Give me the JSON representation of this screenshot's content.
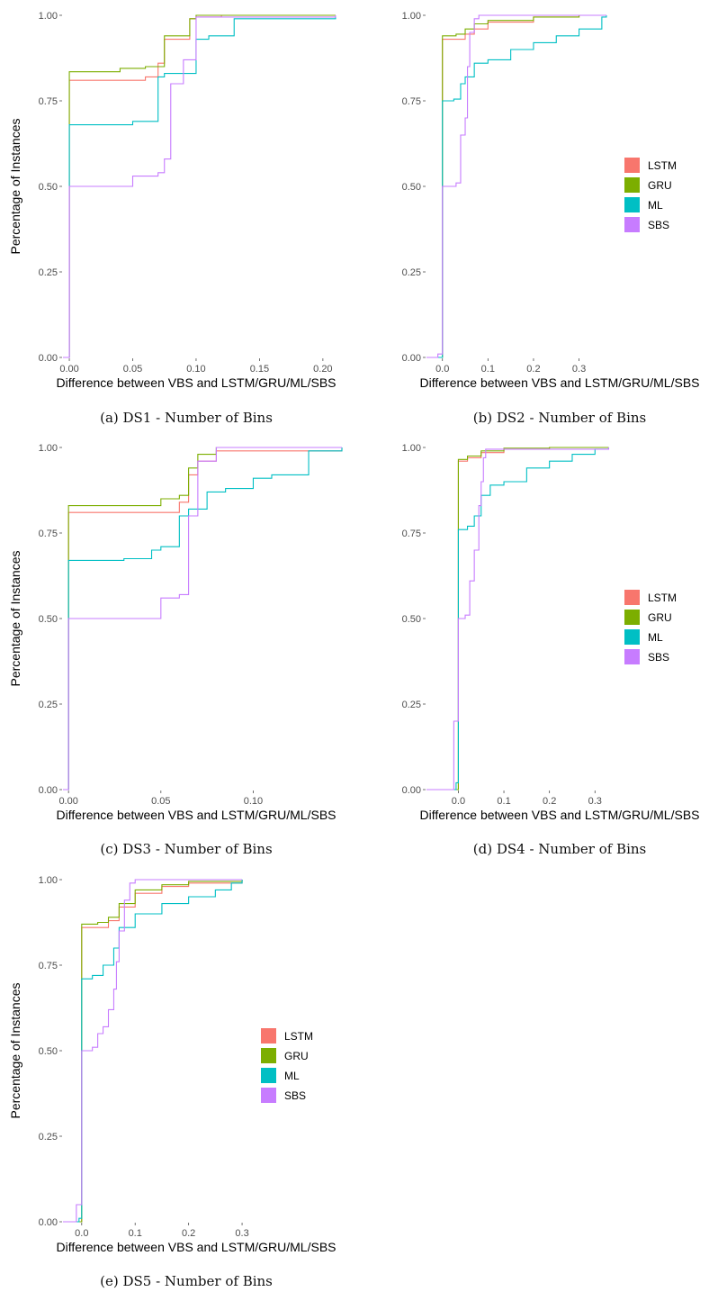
{
  "series_colors": {
    "LSTM": "#F8766D",
    "GRU": "#7CAE00",
    "ML": "#00BFC4",
    "SBS": "#C77CFF"
  },
  "chart_data": [
    {
      "type": "line",
      "caption": "(a) DS1 - Number of Bins",
      "xlabel": "Difference between VBS and LSTM/GRU/ML/SBS",
      "ylabel": "Percentage of Instances",
      "xlim": [
        -0.005,
        0.215
      ],
      "ylim": [
        0,
        1
      ],
      "xticks": [
        0,
        0.05,
        0.1,
        0.15,
        0.2
      ],
      "xtick_labels": [
        "0.00",
        "0.05",
        "0.10",
        "0.15",
        "0.20"
      ],
      "yticks": [
        0,
        0.25,
        0.5,
        0.75,
        1
      ],
      "ytick_labels": [
        "0.00",
        "0.25",
        "0.50",
        "0.75",
        "1.00"
      ],
      "legend": "none",
      "series": [
        {
          "name": "LSTM",
          "x": [
            -0.005,
            0,
            0.04,
            0.06,
            0.07,
            0.075,
            0.095,
            0.1,
            0.12,
            0.21
          ],
          "y": [
            0,
            0.81,
            0.81,
            0.82,
            0.86,
            0.93,
            0.99,
            0.995,
            1,
            1
          ]
        },
        {
          "name": "GRU",
          "x": [
            -0.005,
            0,
            0.04,
            0.06,
            0.075,
            0.095,
            0.1,
            0.21
          ],
          "y": [
            0,
            0.835,
            0.845,
            0.85,
            0.94,
            0.99,
            1,
            1
          ]
        },
        {
          "name": "ML",
          "x": [
            -0.005,
            0,
            0.03,
            0.05,
            0.07,
            0.075,
            0.085,
            0.1,
            0.11,
            0.13,
            0.21
          ],
          "y": [
            0,
            0.68,
            0.68,
            0.69,
            0.82,
            0.83,
            0.83,
            0.93,
            0.94,
            0.99,
            1
          ]
        },
        {
          "name": "SBS",
          "x": [
            -0.005,
            0,
            0.04,
            0.05,
            0.07,
            0.075,
            0.08,
            0.09,
            0.095,
            0.1,
            0.21
          ],
          "y": [
            0,
            0.5,
            0.5,
            0.53,
            0.54,
            0.58,
            0.8,
            0.87,
            0.87,
            0.995,
            1
          ]
        }
      ]
    },
    {
      "type": "line",
      "caption": "(b) DS2 - Number of Bins",
      "xlabel": "Difference between VBS and LSTM/GRU/ML/SBS",
      "ylabel": "",
      "xlim": [
        -0.035,
        0.37
      ],
      "ylim": [
        0,
        1
      ],
      "xticks": [
        0,
        0.1,
        0.2,
        0.3
      ],
      "xtick_labels": [
        "0.0",
        "0.1",
        "0.2",
        "0.3"
      ],
      "yticks": [
        0,
        0.25,
        0.5,
        0.75,
        1
      ],
      "ytick_labels": [
        "0.00",
        "0.25",
        "0.50",
        "0.75",
        "1.00"
      ],
      "legend": "right",
      "series": [
        {
          "name": "LSTM",
          "x": [
            -0.035,
            -0.005,
            0,
            0.03,
            0.05,
            0.07,
            0.1,
            0.2,
            0.3,
            0.36
          ],
          "y": [
            0,
            0,
            0.93,
            0.93,
            0.945,
            0.96,
            0.98,
            0.995,
            1,
            1
          ]
        },
        {
          "name": "GRU",
          "x": [
            -0.035,
            -0.005,
            0,
            0.03,
            0.05,
            0.07,
            0.1,
            0.2,
            0.3,
            0.36
          ],
          "y": [
            0,
            0,
            0.94,
            0.945,
            0.96,
            0.975,
            0.985,
            0.995,
            1,
            1
          ]
        },
        {
          "name": "ML",
          "x": [
            -0.035,
            -0.005,
            0,
            0.025,
            0.04,
            0.05,
            0.07,
            0.1,
            0.15,
            0.2,
            0.25,
            0.3,
            0.35,
            0.36
          ],
          "y": [
            0,
            0,
            0.75,
            0.755,
            0.8,
            0.82,
            0.86,
            0.87,
            0.9,
            0.92,
            0.94,
            0.96,
            0.995,
            1
          ]
        },
        {
          "name": "SBS",
          "x": [
            -0.035,
            -0.01,
            -0.005,
            0,
            0.02,
            0.03,
            0.04,
            0.05,
            0.055,
            0.06,
            0.07,
            0.08,
            0.1,
            0.36
          ],
          "y": [
            0,
            0.01,
            0.01,
            0.5,
            0.5,
            0.51,
            0.65,
            0.7,
            0.85,
            0.95,
            0.99,
            1,
            1,
            1
          ]
        }
      ]
    },
    {
      "type": "line",
      "caption": "(c) DS3 - Number of Bins",
      "xlabel": "Difference between VBS and LSTM/GRU/ML/SBS",
      "ylabel": "Percentage of Instances",
      "xlim": [
        -0.003,
        0.148
      ],
      "ylim": [
        0,
        1
      ],
      "xticks": [
        0,
        0.05,
        0.1
      ],
      "xtick_labels": [
        "0.00",
        "0.05",
        "0.10"
      ],
      "yticks": [
        0,
        0.25,
        0.5,
        0.75,
        1
      ],
      "ytick_labels": [
        "0.00",
        "0.25",
        "0.50",
        "0.75",
        "1.00"
      ],
      "legend": "none",
      "series": [
        {
          "name": "LSTM",
          "x": [
            -0.003,
            0,
            0.045,
            0.06,
            0.065,
            0.07,
            0.08,
            0.148
          ],
          "y": [
            0,
            0.81,
            0.81,
            0.84,
            0.92,
            0.96,
            0.99,
            1
          ]
        },
        {
          "name": "GRU",
          "x": [
            -0.003,
            0,
            0.045,
            0.05,
            0.06,
            0.065,
            0.07,
            0.08,
            0.148
          ],
          "y": [
            0,
            0.83,
            0.83,
            0.85,
            0.86,
            0.94,
            0.98,
            1,
            1
          ]
        },
        {
          "name": "ML",
          "x": [
            -0.003,
            0,
            0.03,
            0.045,
            0.05,
            0.06,
            0.065,
            0.075,
            0.085,
            0.1,
            0.11,
            0.13,
            0.148
          ],
          "y": [
            0,
            0.67,
            0.675,
            0.7,
            0.71,
            0.8,
            0.82,
            0.87,
            0.88,
            0.91,
            0.92,
            0.99,
            1
          ]
        },
        {
          "name": "SBS",
          "x": [
            -0.003,
            0,
            0.045,
            0.05,
            0.06,
            0.065,
            0.07,
            0.08,
            0.148
          ],
          "y": [
            0,
            0.5,
            0.5,
            0.56,
            0.57,
            0.8,
            0.96,
            1,
            1
          ]
        }
      ]
    },
    {
      "type": "line",
      "caption": "(d) DS4 - Number of Bins",
      "xlabel": "Difference between VBS and LSTM/GRU/ML/SBS",
      "ylabel": "",
      "xlim": [
        -0.07,
        0.335
      ],
      "ylim": [
        0,
        1
      ],
      "xticks": [
        0,
        0.1,
        0.2,
        0.3
      ],
      "xtick_labels": [
        "0.0",
        "0.1",
        "0.2",
        "0.3"
      ],
      "yticks": [
        0,
        0.25,
        0.5,
        0.75,
        1
      ],
      "ytick_labels": [
        "0.00",
        "0.25",
        "0.50",
        "0.75",
        "1.00"
      ],
      "legend": "right",
      "series": [
        {
          "name": "LSTM",
          "x": [
            -0.07,
            -0.005,
            0,
            0.02,
            0.05,
            0.1,
            0.2,
            0.33
          ],
          "y": [
            0,
            0,
            0.96,
            0.97,
            0.985,
            0.995,
            1,
            1
          ]
        },
        {
          "name": "GRU",
          "x": [
            -0.07,
            -0.005,
            0,
            0.02,
            0.05,
            0.1,
            0.2,
            0.33
          ],
          "y": [
            0,
            0,
            0.965,
            0.975,
            0.99,
            0.998,
            1,
            1
          ]
        },
        {
          "name": "ML",
          "x": [
            -0.07,
            -0.01,
            -0.005,
            0,
            0.02,
            0.035,
            0.05,
            0.07,
            0.1,
            0.15,
            0.2,
            0.25,
            0.3,
            0.33
          ],
          "y": [
            0,
            0,
            0.02,
            0.76,
            0.77,
            0.8,
            0.86,
            0.89,
            0.9,
            0.94,
            0.96,
            0.98,
            0.995,
            1
          ]
        },
        {
          "name": "SBS",
          "x": [
            -0.07,
            -0.01,
            -0.005,
            0,
            0.015,
            0.025,
            0.035,
            0.045,
            0.05,
            0.055,
            0.06,
            0.33
          ],
          "y": [
            0,
            0.2,
            0.2,
            0.5,
            0.51,
            0.61,
            0.7,
            0.83,
            0.9,
            0.97,
            0.995,
            1
          ]
        }
      ]
    },
    {
      "type": "line",
      "caption": "(e) DS5 - Number of Bins",
      "xlabel": "Difference between VBS and LSTM/GRU/ML/SBS",
      "ylabel": "Percentage of Instances",
      "xlim": [
        -0.035,
        0.31
      ],
      "ylim": [
        0,
        1
      ],
      "xticks": [
        0,
        0.1,
        0.2,
        0.3
      ],
      "xtick_labels": [
        "0.0",
        "0.1",
        "0.2",
        "0.3"
      ],
      "yticks": [
        0,
        0.25,
        0.5,
        0.75,
        1
      ],
      "ytick_labels": [
        "0.00",
        "0.25",
        "0.50",
        "0.75",
        "1.00"
      ],
      "legend": "right",
      "series": [
        {
          "name": "LSTM",
          "x": [
            -0.035,
            -0.005,
            0,
            0.03,
            0.05,
            0.07,
            0.1,
            0.15,
            0.2,
            0.3
          ],
          "y": [
            0,
            0,
            0.86,
            0.86,
            0.88,
            0.92,
            0.96,
            0.98,
            0.99,
            1
          ]
        },
        {
          "name": "GRU",
          "x": [
            -0.035,
            -0.005,
            0,
            0.03,
            0.05,
            0.07,
            0.1,
            0.15,
            0.2,
            0.3
          ],
          "y": [
            0,
            0,
            0.87,
            0.875,
            0.89,
            0.93,
            0.97,
            0.985,
            0.995,
            1
          ]
        },
        {
          "name": "ML",
          "x": [
            -0.035,
            -0.005,
            0,
            0.02,
            0.04,
            0.06,
            0.07,
            0.1,
            0.15,
            0.2,
            0.25,
            0.28,
            0.3
          ],
          "y": [
            0,
            0.01,
            0.71,
            0.72,
            0.75,
            0.8,
            0.86,
            0.9,
            0.93,
            0.95,
            0.97,
            0.99,
            1
          ]
        },
        {
          "name": "SBS",
          "x": [
            -0.035,
            -0.01,
            -0.005,
            0,
            0.02,
            0.03,
            0.04,
            0.05,
            0.06,
            0.065,
            0.07,
            0.08,
            0.09,
            0.1,
            0.3
          ],
          "y": [
            0,
            0.05,
            0.05,
            0.5,
            0.51,
            0.55,
            0.57,
            0.62,
            0.68,
            0.76,
            0.85,
            0.94,
            0.99,
            1,
            1
          ]
        }
      ]
    }
  ]
}
